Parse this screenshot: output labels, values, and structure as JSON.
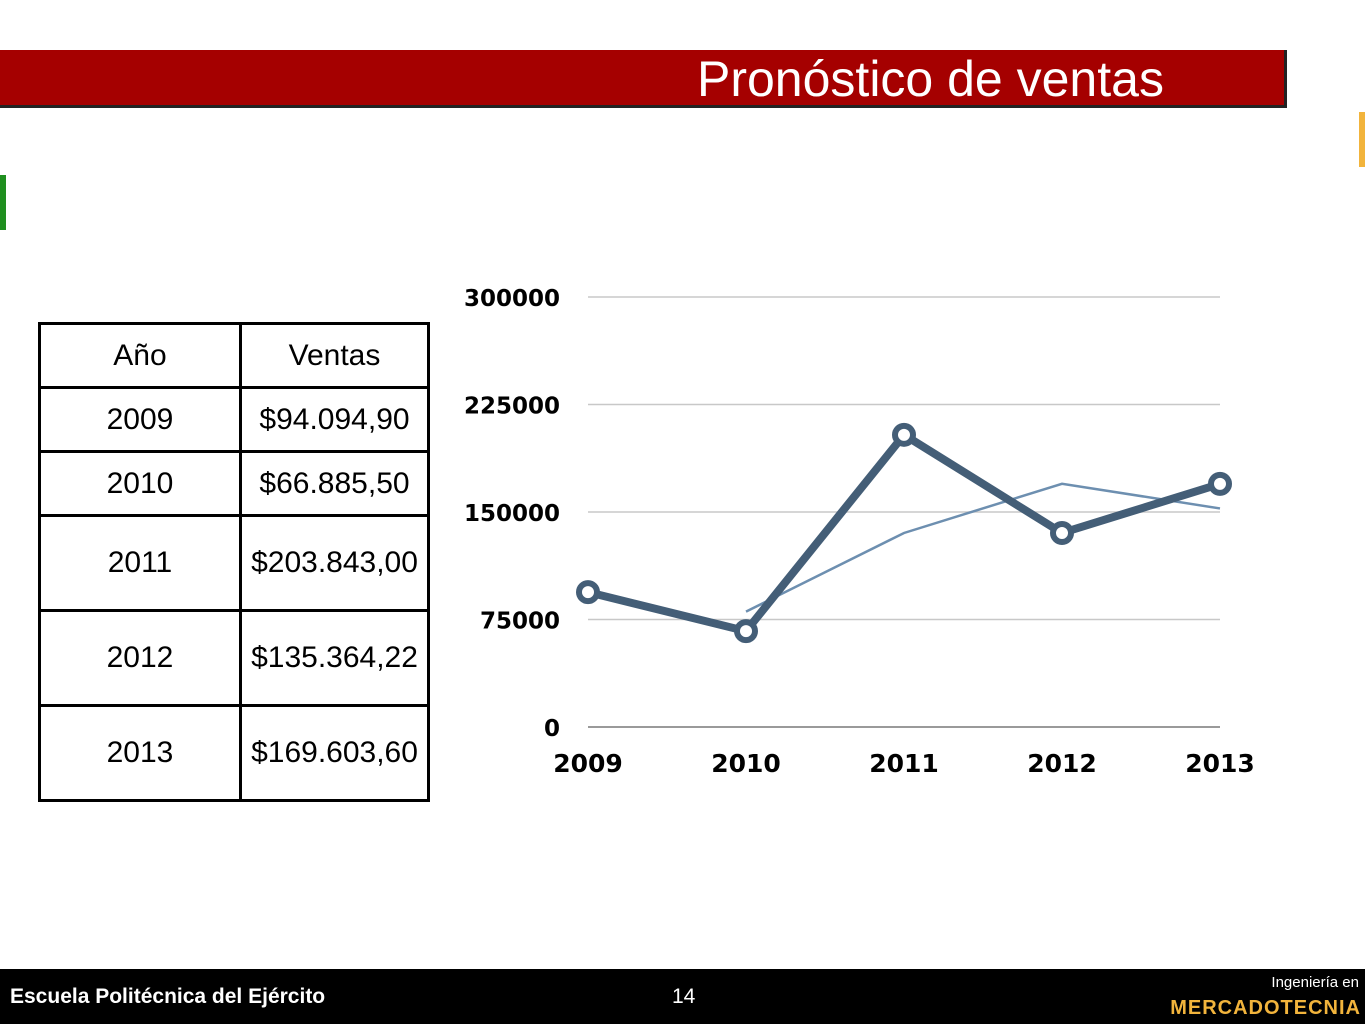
{
  "title": "Pronóstico de ventas",
  "table": {
    "headers": [
      "Año",
      "Ventas"
    ],
    "rows": [
      {
        "year": "2009",
        "sales": "$94.094,90"
      },
      {
        "year": "2010",
        "sales": "$66.885,50"
      },
      {
        "year": "2011",
        "sales": "$203.843,00"
      },
      {
        "year": "2012",
        "sales": "$135.364,22"
      },
      {
        "year": "2013",
        "sales": "$169.603,60"
      }
    ]
  },
  "chart_data": {
    "type": "line",
    "categories": [
      "2009",
      "2010",
      "2011",
      "2012",
      "2013"
    ],
    "series": [
      {
        "values": [
          94094.9,
          66885.5,
          203843.0,
          135364.22,
          169603.6
        ],
        "color": "#445e77"
      },
      {
        "values": [
          null,
          80490,
          135364,
          169690,
          152484
        ],
        "color": "#6d8fb0"
      }
    ],
    "yticks": [
      "0",
      "75000",
      "150000",
      "225000",
      "300000"
    ],
    "ylim": [
      0,
      300000
    ],
    "grid": true
  },
  "footer": {
    "school": "Escuela Politécnica del Ejército",
    "page": "14",
    "program_label": "Ingeniería en",
    "program_name": "MERCADOTECNIA"
  },
  "colors": {
    "title_bar": "#a50000",
    "accent_green": "#1f8f1f",
    "accent_yellow": "#f2b43c",
    "footer_bg": "#000000"
  }
}
